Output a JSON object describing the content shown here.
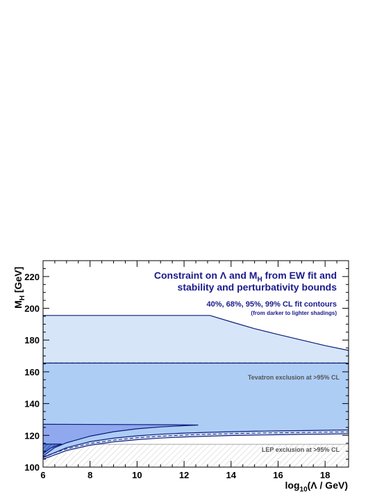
{
  "chart_data": {
    "type": "area",
    "title_line1_a": "Constraint on Λ and M",
    "title_line1_sub": "H",
    "title_line1_b": " from EW fit and",
    "title_line2": "stability and perturbativity bounds",
    "contour_note": "40%, 68%, 95%, 99% CL fit contours",
    "shading_note": "(from darker to lighter shadings)",
    "xlabel_a": "log",
    "xlabel_sub": "10",
    "xlabel_b": "(Λ / GeV)",
    "ylabel_a": "M",
    "ylabel_sub": "H",
    "ylabel_b": " [GeV]",
    "xlim": [
      6,
      19
    ],
    "ylim": [
      100,
      230
    ],
    "x_ticks": [
      6,
      8,
      10,
      12,
      14,
      16,
      18
    ],
    "y_ticks": [
      100,
      120,
      140,
      160,
      180,
      200,
      220
    ],
    "tevatron_band": [
      160,
      170
    ],
    "tevatron_label": "Tevatron exclusion at >95% CL",
    "lep_band": [
      100,
      114.4
    ],
    "lep_label": "LEP exclusion at >95% CL",
    "regions": [
      {
        "level": "99% CL",
        "color": "#d6e6f8",
        "upper": [
          [
            6,
            195.5
          ],
          [
            13.1,
            195.5
          ],
          [
            14,
            191.5
          ],
          [
            15,
            187.2
          ],
          [
            16,
            183.5
          ],
          [
            17,
            180
          ],
          [
            18,
            176.5
          ],
          [
            19,
            173.5
          ]
        ],
        "lower": [
          [
            6,
            105
          ],
          [
            7,
            110.4
          ],
          [
            8,
            113.8
          ],
          [
            9,
            115.9
          ],
          [
            10,
            117.3
          ],
          [
            11,
            118.3
          ],
          [
            12,
            119
          ],
          [
            13,
            119.5
          ],
          [
            14,
            119.9
          ],
          [
            15,
            120.2
          ],
          [
            16,
            120.4
          ],
          [
            17,
            120.6
          ],
          [
            18,
            120.8
          ],
          [
            19,
            121
          ]
        ]
      },
      {
        "level": "95% CL",
        "color": "#aecdf5",
        "upper": [
          [
            6,
            165.5
          ],
          [
            19,
            165.5
          ]
        ],
        "lower": [
          [
            6,
            106
          ],
          [
            7,
            112.2
          ],
          [
            8,
            116
          ],
          [
            9,
            118.2
          ],
          [
            10,
            119.7
          ],
          [
            11,
            120.7
          ],
          [
            12,
            121.4
          ],
          [
            13,
            121.9
          ],
          [
            14,
            122.3
          ],
          [
            15,
            122.6
          ],
          [
            16,
            122.8
          ],
          [
            17,
            123
          ],
          [
            18,
            123.2
          ],
          [
            19,
            123.4
          ]
        ]
      },
      {
        "level": "68% CL",
        "color": "#8fa8ee",
        "upper": [
          [
            6,
            127
          ],
          [
            10,
            126.8
          ],
          [
            12,
            126.6
          ],
          [
            12.6,
            126.5
          ]
        ],
        "lower": [
          [
            6,
            107
          ],
          [
            6.5,
            112.3
          ],
          [
            7,
            115.3
          ],
          [
            8,
            119.5
          ],
          [
            9,
            122.3
          ],
          [
            10,
            124.1
          ],
          [
            11,
            125.3
          ],
          [
            12,
            126.1
          ],
          [
            12.6,
            126.5
          ]
        ]
      },
      {
        "level": "40% CL",
        "color": "#5d86d8",
        "upper": [
          [
            6,
            114.5
          ],
          [
            6.8,
            114.5
          ]
        ],
        "lower": [
          [
            6,
            108.5
          ],
          [
            6.3,
            111.8
          ],
          [
            6.6,
            113.6
          ],
          [
            6.8,
            114.5
          ]
        ]
      }
    ],
    "dashed_lower_curve": [
      [
        6,
        106.5
      ],
      [
        7,
        111.5
      ],
      [
        8,
        114.9
      ],
      [
        9,
        117
      ],
      [
        10,
        118.5
      ],
      [
        11,
        119.5
      ],
      [
        12,
        120.2
      ],
      [
        13,
        120.7
      ],
      [
        14,
        121.1
      ],
      [
        15,
        121.4
      ],
      [
        16,
        121.6
      ],
      [
        17,
        121.8
      ],
      [
        18,
        122
      ],
      [
        19,
        122.2
      ]
    ],
    "colors": {
      "outline": "#0d1a7a",
      "hatch": "#c8c8c8",
      "title": "#1a1a8c",
      "band_label": "#555555"
    }
  }
}
